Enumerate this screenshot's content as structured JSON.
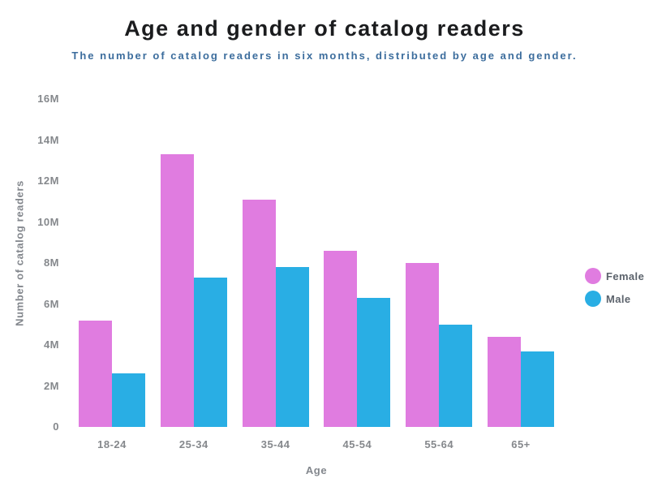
{
  "chart_data": {
    "type": "bar",
    "title": "Age and gender of catalog readers",
    "subtitle": "The number of catalog readers in six months, distributed by age and gender.",
    "xlabel": "Age",
    "ylabel": "Number of catalog readers",
    "categories": [
      "18-24",
      "25-34",
      "35-44",
      "45-54",
      "55-64",
      "65+"
    ],
    "series": [
      {
        "name": "Female",
        "color": "#e07ce0",
        "values": [
          5.2,
          13.3,
          11.1,
          8.6,
          8.0,
          4.4
        ]
      },
      {
        "name": "Male",
        "color": "#29aee4",
        "values": [
          2.6,
          7.3,
          7.8,
          6.3,
          5.0,
          3.7
        ]
      }
    ],
    "value_unit": "millions",
    "ylim": [
      0,
      16
    ],
    "ytick_step": 2,
    "ytick_labels": [
      "0",
      "2M",
      "4M",
      "6M",
      "8M",
      "10M",
      "12M",
      "14M",
      "16M"
    ],
    "grid": false,
    "legend_position": "right"
  },
  "colors": {
    "female_pink": "#e07ce0",
    "male_blue": "#29aee4",
    "subtitle_blue": "#3c6d9d",
    "title_black": "#1b1c1e",
    "axis_gray": "#85888c"
  }
}
